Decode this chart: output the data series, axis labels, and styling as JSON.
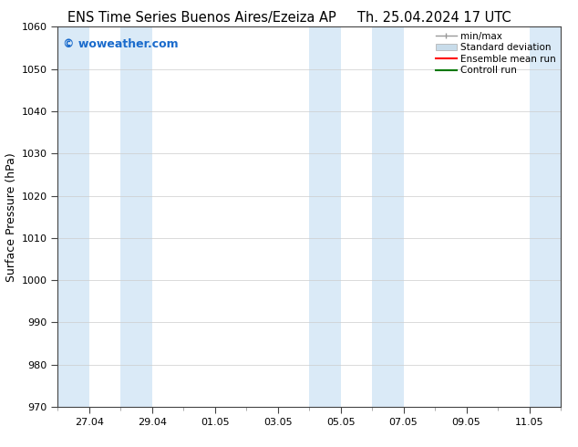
{
  "title_left": "ENS Time Series Buenos Aires/Ezeiza AP",
  "title_right": "Th. 25.04.2024 17 UTC",
  "ylabel": "Surface Pressure (hPa)",
  "ylim": [
    970,
    1060
  ],
  "yticks": [
    970,
    980,
    990,
    1000,
    1010,
    1020,
    1030,
    1040,
    1050,
    1060
  ],
  "xtick_labels": [
    "27.04",
    "29.04",
    "01.05",
    "03.05",
    "05.05",
    "07.05",
    "09.05",
    "11.05"
  ],
  "watermark": "© woweather.com",
  "watermark_color": "#1a6bcc",
  "bg_color": "#ffffff",
  "plot_bg_color": "#ffffff",
  "shade_color": "#daeaf7",
  "title_fontsize": 10.5,
  "axis_fontsize": 9,
  "tick_fontsize": 8,
  "watermark_fontsize": 9,
  "legend_fontsize": 7.5,
  "minmax_color": "#999999",
  "stddev_color": "#c8dcea",
  "ensemble_color": "#ff0000",
  "control_color": "#007700"
}
